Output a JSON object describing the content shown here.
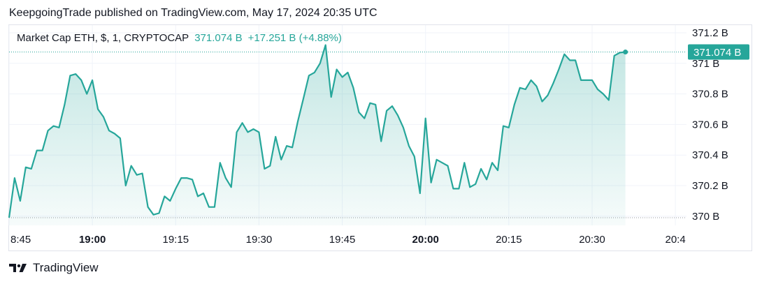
{
  "header": {
    "publish_text": "KeepgoingTrade published on TradingView.com, May 17, 2024 20:35 UTC"
  },
  "legend": {
    "symbol": "Market Cap ETH, $, 1, CRYPTOCAP",
    "last": "371.074 B",
    "change": "+17.251 B (+4.88%)"
  },
  "footer": {
    "brand": "TradingView"
  },
  "colors": {
    "line": "#26a69a",
    "area_top": "#26a69a",
    "price_tag_bg": "#26a69a",
    "grid": "#f0f3fa",
    "text": "#131722"
  },
  "chart_data": {
    "type": "area",
    "title": "Market Cap ETH, $, 1, CRYPTOCAP",
    "xlabel": "",
    "ylabel": "",
    "x_ticks": [
      {
        "label": "8:45",
        "min": 0,
        "bold": false
      },
      {
        "label": "19:00",
        "min": 15,
        "bold": true
      },
      {
        "label": "19:15",
        "min": 30,
        "bold": false
      },
      {
        "label": "19:30",
        "min": 45,
        "bold": false
      },
      {
        "label": "19:45",
        "min": 60,
        "bold": false
      },
      {
        "label": "20:00",
        "min": 75,
        "bold": true
      },
      {
        "label": "20:15",
        "min": 90,
        "bold": false
      },
      {
        "label": "20:30",
        "min": 105,
        "bold": false
      },
      {
        "label": "20:4",
        "min": 120,
        "bold": false
      }
    ],
    "y_ticks": [
      "370 B",
      "370.2 B",
      "370.4 B",
      "370.6 B",
      "370.8 B",
      "371 B",
      "371.2 B"
    ],
    "y_tick_values": [
      370.0,
      370.2,
      370.4,
      370.6,
      370.8,
      371.0,
      371.2
    ],
    "x_range_min": [
      0,
      122
    ],
    "y_range": [
      369.94,
      371.25
    ],
    "last_value": 371.074,
    "last_label": "371.074 B",
    "grid": true,
    "series": [
      {
        "values": [
          [
            0,
            369.99
          ],
          [
            1,
            370.25
          ],
          [
            2,
            370.1
          ],
          [
            3,
            370.32
          ],
          [
            4,
            370.31
          ],
          [
            5,
            370.43
          ],
          [
            6,
            370.43
          ],
          [
            7,
            370.56
          ],
          [
            8,
            370.59
          ],
          [
            9,
            370.58
          ],
          [
            10,
            370.73
          ],
          [
            11,
            370.92
          ],
          [
            12,
            370.93
          ],
          [
            13,
            370.89
          ],
          [
            14,
            370.8
          ],
          [
            15,
            370.89
          ],
          [
            16,
            370.7
          ],
          [
            17,
            370.65
          ],
          [
            18,
            370.56
          ],
          [
            19,
            370.54
          ],
          [
            20,
            370.51
          ],
          [
            21,
            370.2
          ],
          [
            22,
            370.33
          ],
          [
            23,
            370.27
          ],
          [
            24,
            370.28
          ],
          [
            25,
            370.06
          ],
          [
            26,
            370.01
          ],
          [
            27,
            370.02
          ],
          [
            28,
            370.13
          ],
          [
            29,
            370.1
          ],
          [
            30,
            370.18
          ],
          [
            31,
            370.25
          ],
          [
            32,
            370.25
          ],
          [
            33,
            370.24
          ],
          [
            34,
            370.13
          ],
          [
            35,
            370.15
          ],
          [
            36,
            370.06
          ],
          [
            37,
            370.06
          ],
          [
            38,
            370.35
          ],
          [
            39,
            370.25
          ],
          [
            40,
            370.19
          ],
          [
            41,
            370.55
          ],
          [
            42,
            370.61
          ],
          [
            43,
            370.55
          ],
          [
            44,
            370.57
          ],
          [
            45,
            370.55
          ],
          [
            46,
            370.31
          ],
          [
            47,
            370.33
          ],
          [
            48,
            370.52
          ],
          [
            49,
            370.37
          ],
          [
            50,
            370.46
          ],
          [
            51,
            370.45
          ],
          [
            52,
            370.62
          ],
          [
            53,
            370.77
          ],
          [
            54,
            370.92
          ],
          [
            55,
            370.94
          ],
          [
            56,
            371.0
          ],
          [
            57,
            371.12
          ],
          [
            58,
            370.78
          ],
          [
            59,
            370.96
          ],
          [
            60,
            370.91
          ],
          [
            61,
            370.94
          ],
          [
            62,
            370.84
          ],
          [
            63,
            370.68
          ],
          [
            64,
            370.64
          ],
          [
            65,
            370.74
          ],
          [
            66,
            370.73
          ],
          [
            67,
            370.49
          ],
          [
            68,
            370.69
          ],
          [
            69,
            370.72
          ],
          [
            70,
            370.66
          ],
          [
            71,
            370.58
          ],
          [
            72,
            370.46
          ],
          [
            73,
            370.39
          ],
          [
            74,
            370.15
          ],
          [
            75,
            370.64
          ],
          [
            76,
            370.22
          ],
          [
            77,
            370.37
          ],
          [
            78,
            370.35
          ],
          [
            79,
            370.33
          ],
          [
            80,
            370.18
          ],
          [
            81,
            370.18
          ],
          [
            82,
            370.35
          ],
          [
            83,
            370.19
          ],
          [
            84,
            370.21
          ],
          [
            85,
            370.31
          ],
          [
            86,
            370.24
          ],
          [
            87,
            370.35
          ],
          [
            88,
            370.3
          ],
          [
            89,
            370.59
          ],
          [
            90,
            370.58
          ],
          [
            91,
            370.73
          ],
          [
            92,
            370.84
          ],
          [
            93,
            370.83
          ],
          [
            94,
            370.89
          ],
          [
            95,
            370.85
          ],
          [
            96,
            370.75
          ],
          [
            97,
            370.79
          ],
          [
            98,
            370.87
          ],
          [
            99,
            370.96
          ],
          [
            100,
            371.06
          ],
          [
            101,
            371.02
          ],
          [
            102,
            371.02
          ],
          [
            103,
            370.89
          ],
          [
            104,
            370.89
          ],
          [
            105,
            370.89
          ],
          [
            106,
            370.83
          ],
          [
            107,
            370.8
          ],
          [
            108,
            370.76
          ],
          [
            109,
            371.05
          ],
          [
            110,
            371.07
          ],
          [
            111,
            371.074
          ]
        ]
      }
    ]
  }
}
